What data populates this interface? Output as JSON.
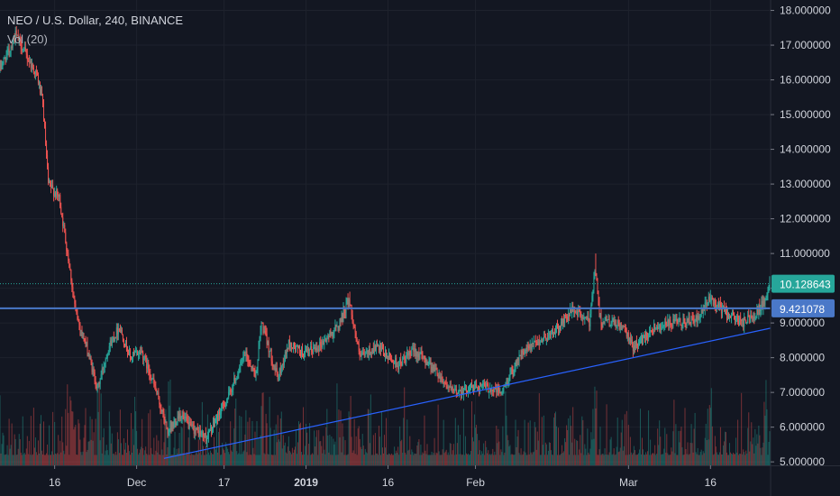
{
  "legend": {
    "symbol_line": "NEO / U.S. Dollar, 240, BINANCE",
    "volume_line": "Vol (20)"
  },
  "colors": {
    "background": "#131722",
    "grid": "#1e222d",
    "up": "#26a69a",
    "down": "#ef5350",
    "trendline": "#2962ff",
    "horizontal_line": "#4a78c8",
    "last_price_tag": "#26a69a",
    "level_tag": "#4a78c8",
    "axis_text": "#d1d4dc"
  },
  "chart_data": {
    "type": "candlestick",
    "y_axis": {
      "ylim": [
        4.9,
        18.3
      ],
      "tick_values": [
        5,
        6,
        7,
        8,
        9,
        10,
        11,
        12,
        13,
        14,
        15,
        16,
        17,
        18
      ],
      "tick_labels": [
        "5.000000",
        "6.000000",
        "7.000000",
        "8.000000",
        "9.000000",
        "10.000000",
        "11.000000",
        "12.000000",
        "13.000000",
        "14.000000",
        "15.000000",
        "16.000000",
        "17.000000",
        "18.000000"
      ],
      "side": "right"
    },
    "x_axis": {
      "range": [
        "2018-11-06",
        "2019-03-27"
      ],
      "ticks": [
        {
          "date": "2018-11-16",
          "label": "16",
          "bold": false
        },
        {
          "date": "2018-12-01",
          "label": "Dec",
          "bold": false
        },
        {
          "date": "2018-12-17",
          "label": "17",
          "bold": false
        },
        {
          "date": "2019-01-01",
          "label": "2019",
          "bold": true
        },
        {
          "date": "2019-01-16",
          "label": "16",
          "bold": false
        },
        {
          "date": "2019-02-01",
          "label": "Feb",
          "bold": false
        },
        {
          "date": "2019-03-01",
          "label": "Mar",
          "bold": false
        },
        {
          "date": "2019-03-16",
          "label": "16",
          "bold": false
        }
      ]
    },
    "price_path": [
      [
        "2018-11-06",
        16.3
      ],
      [
        "2018-11-08",
        16.9
      ],
      [
        "2018-11-09",
        17.3
      ],
      [
        "2018-11-11",
        16.7
      ],
      [
        "2018-11-13",
        16.1
      ],
      [
        "2018-11-14",
        15.3
      ],
      [
        "2018-11-15",
        13.0
      ],
      [
        "2018-11-16",
        12.8
      ],
      [
        "2018-11-17",
        12.6
      ],
      [
        "2018-11-19",
        10.5
      ],
      [
        "2018-11-20",
        9.3
      ],
      [
        "2018-11-22",
        8.3
      ],
      [
        "2018-11-24",
        7.1
      ],
      [
        "2018-11-26",
        8.3
      ],
      [
        "2018-11-28",
        8.9
      ],
      [
        "2018-11-30",
        8.0
      ],
      [
        "2018-12-02",
        8.2
      ],
      [
        "2018-12-04",
        7.4
      ],
      [
        "2018-12-07",
        5.8
      ],
      [
        "2018-12-09",
        6.4
      ],
      [
        "2018-12-11",
        6.0
      ],
      [
        "2018-12-14",
        5.7
      ],
      [
        "2018-12-18",
        6.9
      ],
      [
        "2018-12-21",
        8.1
      ],
      [
        "2018-12-23",
        7.5
      ],
      [
        "2018-12-24",
        9.0
      ],
      [
        "2018-12-27",
        7.4
      ],
      [
        "2018-12-29",
        8.4
      ],
      [
        "2019-01-01",
        8.1
      ],
      [
        "2019-01-04",
        8.4
      ],
      [
        "2019-01-07",
        8.9
      ],
      [
        "2019-01-09",
        9.7
      ],
      [
        "2019-01-11",
        8.0
      ],
      [
        "2019-01-14",
        8.3
      ],
      [
        "2019-01-18",
        7.8
      ],
      [
        "2019-01-21",
        8.2
      ],
      [
        "2019-01-24",
        7.8
      ],
      [
        "2019-01-28",
        7.0
      ],
      [
        "2019-02-02",
        7.2
      ],
      [
        "2019-02-06",
        7.0
      ],
      [
        "2019-02-09",
        8.0
      ],
      [
        "2019-02-12",
        8.4
      ],
      [
        "2019-02-16",
        8.8
      ],
      [
        "2019-02-19",
        9.4
      ],
      [
        "2019-02-22",
        9.0
      ],
      [
        "2019-02-23",
        10.6
      ],
      [
        "2019-02-24",
        9.1
      ],
      [
        "2019-02-28",
        8.9
      ],
      [
        "2019-03-02",
        8.3
      ],
      [
        "2019-03-06",
        8.9
      ],
      [
        "2019-03-10",
        9.0
      ],
      [
        "2019-03-14",
        9.1
      ],
      [
        "2019-03-16",
        9.7
      ],
      [
        "2019-03-19",
        9.3
      ],
      [
        "2019-03-22",
        9.0
      ],
      [
        "2019-03-24",
        9.2
      ],
      [
        "2019-03-26",
        9.6
      ],
      [
        "2019-03-27",
        10.13
      ]
    ],
    "notable_highs": [
      {
        "date": "2019-01-09",
        "high": 9.9
      },
      {
        "date": "2019-02-23",
        "high": 11.0
      },
      {
        "date": "2019-03-16",
        "high": 9.95
      },
      {
        "date": "2019-03-27",
        "high": 10.3
      }
    ],
    "horizontal_line": {
      "value": 9.421078,
      "label": "9.421078"
    },
    "last_price": {
      "value": 10.128643,
      "label": "10.128643"
    },
    "trendline": {
      "start": [
        "2018-12-06",
        5.1
      ],
      "end": [
        "2019-03-27",
        8.85
      ]
    },
    "volume": {
      "max_relative_height": 1.0
    }
  }
}
